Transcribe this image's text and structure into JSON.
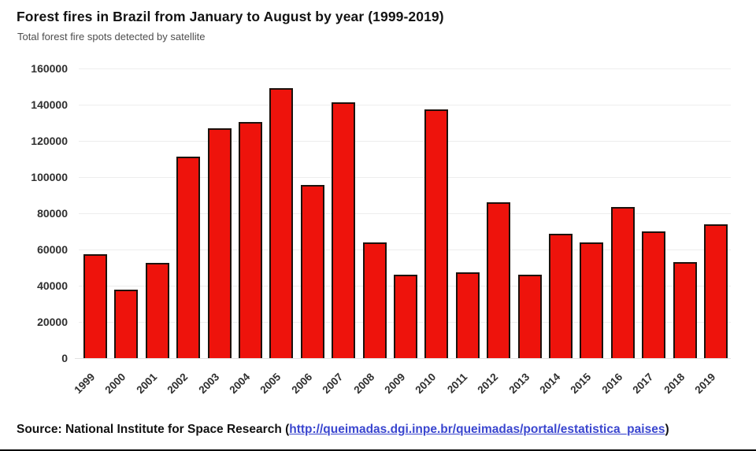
{
  "header": {
    "title": "Forest fires in Brazil from January to August by year (1999-2019)",
    "subtitle": "Total forest fire spots detected by satellite"
  },
  "chart_data": {
    "type": "bar",
    "title": "Forest fires in Brazil from January to August by year (1999-2019)",
    "subtitle": "Total forest fire spots detected by satellite",
    "categories": [
      "1999",
      "2000",
      "2001",
      "2002",
      "2003",
      "2004",
      "2005",
      "2006",
      "2007",
      "2008",
      "2009",
      "2010",
      "2011",
      "2012",
      "2013",
      "2014",
      "2015",
      "2016",
      "2017",
      "2018",
      "2019"
    ],
    "values": [
      57500,
      38000,
      52500,
      111500,
      127000,
      130500,
      149000,
      95500,
      141500,
      64000,
      46000,
      137500,
      47500,
      86000,
      46000,
      68500,
      64000,
      83500,
      70000,
      53000,
      74000
    ],
    "xlabel": "",
    "ylabel": "Total forest fire spots detected by satellite",
    "ylim": [
      0,
      160000
    ],
    "yticks": [
      0,
      20000,
      40000,
      60000,
      80000,
      100000,
      120000,
      140000,
      160000
    ],
    "grid": "horizontal",
    "legend": "none",
    "bar_fill": "#ee130c",
    "bar_border": "#1c120d"
  },
  "source": {
    "prefix": "Source: National Institute for Space Research (",
    "link_text": "http://queimadas.dgi.inpe.br/queimadas/portal/estatistica_paises",
    "suffix": ")"
  }
}
